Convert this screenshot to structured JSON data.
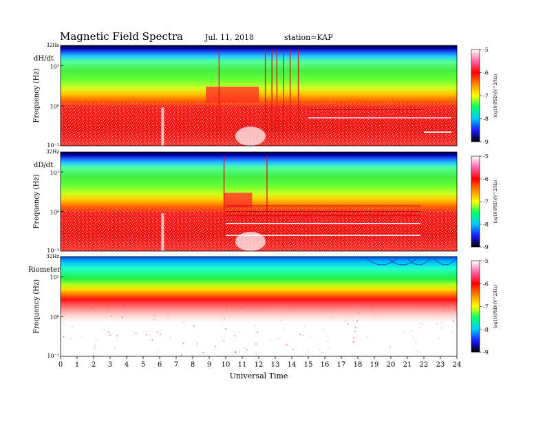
{
  "header": {
    "title": "Magnetic Field Spectra",
    "date": "Jul. 11, 2018",
    "station": "station=KAP"
  },
  "chart_data": {
    "type": "heatmap",
    "xlabel": "Universal Time",
    "x_ticks": [
      "0",
      "1",
      "2",
      "3",
      "4",
      "5",
      "6",
      "7",
      "8",
      "9",
      "10",
      "11",
      "12",
      "13",
      "14",
      "15",
      "16",
      "17",
      "18",
      "19",
      "20",
      "21",
      "22",
      "23",
      "24"
    ],
    "xlim": [
      0,
      24
    ],
    "colorbar": {
      "label": "log10(PSD)(V^2/Hz)",
      "ticks": [
        "-5",
        "-6",
        "-7",
        "-8",
        "-9"
      ],
      "range": [
        -9,
        -5
      ],
      "colormap": [
        "#000000",
        "#1a1aff",
        "#00c8ff",
        "#00ff66",
        "#ffff00",
        "#ff8800",
        "#ff0000",
        "#ff66aa",
        "#ffffff"
      ]
    },
    "panels": [
      {
        "name": "dH/dt",
        "ylabel": "Frequency (Hz)",
        "y_scale": "log",
        "ylim": [
          0.1,
          32
        ],
        "y_ticks": [
          "32Hz",
          "10¹",
          "10⁰",
          "10⁻¹"
        ],
        "features": [
          "dark blue band at top (~20-32 Hz)",
          "green/cyan mid band around 3-10 Hz",
          "red noise below ~1 Hz, enhanced 9-12 UT",
          "vertical broadband spikes 12-15 UT",
          "horizontal white lines 22-24 UT"
        ]
      },
      {
        "name": "dD/dt",
        "ylabel": "Frequency (Hz)",
        "y_scale": "log",
        "ylim": [
          0.1,
          32
        ],
        "y_ticks": [
          "32Hz",
          "10¹",
          "10⁰",
          "10⁻¹"
        ],
        "features": [
          "dark blue band at top",
          "green/cyan mid band",
          "red noise below ~1 Hz",
          "horizontal white lines from ~10 to ~22 UT",
          "vertical spike near 12.5 UT"
        ]
      },
      {
        "name": "Riometer",
        "ylabel": "Frequency (Hz)",
        "y_scale": "log",
        "ylim": [
          0.1,
          32
        ],
        "y_ticks": [
          "32Hz",
          "10¹",
          "10⁰",
          "10⁻¹"
        ],
        "features": [
          "cyan/blue band at top with arcs",
          "green band around 10 Hz",
          "red/orange band around 5 Hz",
          "mostly white below ~3 Hz with scattered red dots"
        ]
      }
    ]
  }
}
